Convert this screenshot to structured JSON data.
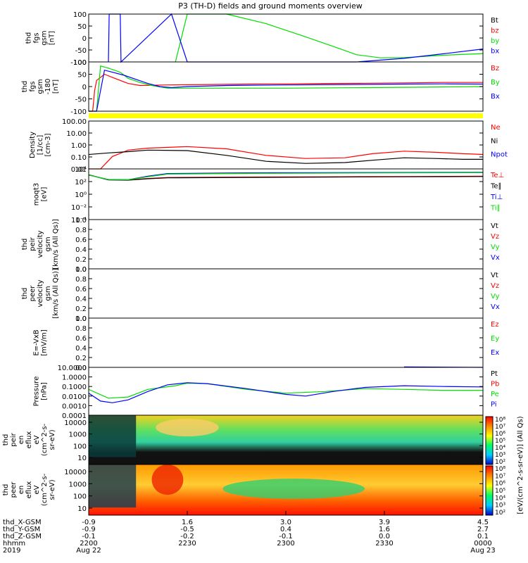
{
  "title": "P3 (TH-D) fields and ground moments overview",
  "colors": {
    "black": "#000000",
    "red": "#ff0000",
    "green": "#00dd00",
    "blue": "#0000ff",
    "yellow": "#ffff00"
  },
  "x_axis": {
    "ticks": [
      {
        "label": "2200",
        "x": "-0.9",
        "y": "-0.9",
        "z": "-0.1",
        "date": "Aug 22"
      },
      {
        "label": "2230",
        "x": "1.6",
        "y": "-0.5",
        "z": "-0.2",
        "date": ""
      },
      {
        "label": "2300",
        "x": "3.0",
        "y": "0.4",
        "z": "-0.1",
        "date": ""
      },
      {
        "label": "2330",
        "x": "3.9",
        "y": "1.6",
        "z": "0.0",
        "date": ""
      },
      {
        "label": "0000",
        "x": "4.5",
        "y": "2.7",
        "z": "0.1",
        "date": "Aug 23"
      }
    ],
    "row_labels": [
      "thd_X-GSM",
      "thd_Y-GSM",
      "thd_Z-GSM",
      "hhmm",
      "2019"
    ]
  },
  "chart_data": [
    {
      "id": "fgs_gsm",
      "type": "line",
      "ylabel": [
        "thd",
        "fgs",
        "gsm",
        "[nT]"
      ],
      "ylim": [
        -100,
        100
      ],
      "yticks": [
        "100",
        "50",
        "0",
        "-50",
        "-100"
      ],
      "series": [
        {
          "name": "Bt",
          "color": "#000000",
          "points": []
        },
        {
          "name": "bz",
          "color": "#ff0000",
          "points": []
        },
        {
          "name": "by",
          "color": "#00dd00",
          "points": [
            [
              0.22,
              -100
            ],
            [
              0.25,
              100
            ],
            [
              0.35,
              100
            ],
            [
              0.45,
              60
            ],
            [
              0.55,
              5
            ],
            [
              0.62,
              -35
            ],
            [
              0.68,
              -70
            ],
            [
              0.74,
              -83
            ],
            [
              0.8,
              -82
            ],
            [
              0.9,
              -72
            ],
            [
              1.0,
              -65
            ]
          ]
        },
        {
          "name": "bx",
          "color": "#0000ff",
          "points": [
            [
              0.05,
              -100
            ],
            [
              0.052,
              100
            ],
            [
              0.08,
              100
            ],
            [
              0.082,
              -100
            ],
            [
              0.21,
              100
            ],
            [
              0.25,
              -100
            ],
            [
              0.68,
              -100
            ],
            [
              0.8,
              -85
            ],
            [
              0.9,
              -66
            ],
            [
              1.0,
              -46
            ]
          ]
        }
      ]
    },
    {
      "id": "fgs_gsm_180",
      "type": "line",
      "ylabel": [
        "thd",
        "fgs",
        "gsm",
        "-180",
        "[nT]"
      ],
      "ylim": [
        -120,
        120
      ],
      "yticks": [
        "100",
        "50",
        "0",
        "-50",
        "-100"
      ],
      "series": [
        {
          "name": "Bz",
          "color": "#ff0000",
          "points": [
            [
              0.0,
              -120
            ],
            [
              0.01,
              -120
            ],
            [
              0.015,
              -20
            ],
            [
              0.02,
              30
            ],
            [
              0.04,
              60
            ],
            [
              0.06,
              45
            ],
            [
              0.08,
              30
            ],
            [
              0.1,
              15
            ],
            [
              0.13,
              5
            ],
            [
              0.2,
              8
            ],
            [
              0.3,
              10
            ],
            [
              0.4,
              12
            ],
            [
              0.5,
              13
            ],
            [
              0.6,
              15
            ],
            [
              0.7,
              16
            ],
            [
              0.8,
              18
            ],
            [
              0.9,
              20
            ],
            [
              1.0,
              20
            ]
          ]
        },
        {
          "name": "By",
          "color": "#00dd00",
          "points": [
            [
              0.0,
              -120
            ],
            [
              0.02,
              -120
            ],
            [
              0.03,
              100
            ],
            [
              0.05,
              90
            ],
            [
              0.08,
              70
            ],
            [
              0.1,
              40
            ],
            [
              0.13,
              20
            ],
            [
              0.16,
              5
            ],
            [
              0.2,
              -8
            ],
            [
              0.3,
              -8
            ],
            [
              0.5,
              -8
            ],
            [
              0.7,
              -5
            ],
            [
              0.85,
              -3
            ],
            [
              1.0,
              0
            ]
          ]
        },
        {
          "name": "Bx",
          "color": "#0000ff",
          "points": [
            [
              0.0,
              -120
            ],
            [
              0.02,
              -120
            ],
            [
              0.04,
              80
            ],
            [
              0.06,
              70
            ],
            [
              0.09,
              55
            ],
            [
              0.12,
              35
            ],
            [
              0.15,
              15
            ],
            [
              0.18,
              0
            ],
            [
              0.21,
              -5
            ],
            [
              0.25,
              0
            ],
            [
              0.35,
              5
            ],
            [
              0.5,
              8
            ],
            [
              0.65,
              10
            ],
            [
              0.8,
              12
            ],
            [
              0.9,
              13
            ],
            [
              1.0,
              12
            ]
          ]
        }
      ]
    },
    {
      "id": "density",
      "type": "line",
      "log": true,
      "ylabel": [
        "Density",
        "[1/cc]",
        "[cm-3]"
      ],
      "ylim": [
        0.1,
        100
      ],
      "yticks": [
        "100.00",
        "10.00",
        "1.00",
        "0.10",
        "0.01"
      ],
      "series": [
        {
          "name": "Ne",
          "color": "#ff0000",
          "points": [
            [
              0.0,
              0.08
            ],
            [
              0.03,
              0.1
            ],
            [
              0.06,
              0.6
            ],
            [
              0.1,
              1.5
            ],
            [
              0.15,
              2.0
            ],
            [
              0.25,
              2.5
            ],
            [
              0.35,
              1.8
            ],
            [
              0.45,
              0.7
            ],
            [
              0.55,
              0.45
            ],
            [
              0.65,
              0.5
            ],
            [
              0.72,
              0.9
            ],
            [
              0.8,
              1.3
            ],
            [
              0.88,
              1.1
            ],
            [
              0.95,
              0.9
            ],
            [
              1.0,
              0.8
            ]
          ]
        },
        {
          "name": "Ni",
          "color": "#000000",
          "points": [
            [
              0.0,
              0.8
            ],
            [
              0.05,
              1.0
            ],
            [
              0.1,
              1.2
            ],
            [
              0.15,
              1.5
            ],
            [
              0.25,
              1.4
            ],
            [
              0.35,
              0.7
            ],
            [
              0.45,
              0.3
            ],
            [
              0.55,
              0.22
            ],
            [
              0.65,
              0.25
            ],
            [
              0.72,
              0.35
            ],
            [
              0.8,
              0.5
            ],
            [
              0.88,
              0.45
            ],
            [
              0.95,
              0.4
            ],
            [
              1.0,
              0.4
            ]
          ]
        },
        {
          "name": "Npot",
          "color": "#0000ff",
          "points": []
        }
      ]
    },
    {
      "id": "moqt3",
      "type": "line",
      "log": true,
      "ylabel": [
        "moqt3",
        "[eV]"
      ],
      "ylim": [
        1e-05,
        10000
      ],
      "yticks": [
        "10⁴",
        "10²",
        "10⁰",
        "10⁻²",
        "10⁻⁴"
      ],
      "series": [
        {
          "name": "Te⊥",
          "color": "#ff0000",
          "points": [
            [
              0,
              900
            ],
            [
              0.05,
              120
            ],
            [
              0.1,
              110
            ],
            [
              0.15,
              200
            ],
            [
              0.2,
              300
            ],
            [
              0.4,
              350
            ],
            [
              0.6,
              400
            ],
            [
              0.8,
              450
            ],
            [
              1.0,
              500
            ]
          ]
        },
        {
          "name": "Te∥",
          "color": "#000000",
          "points": [
            [
              0,
              900
            ],
            [
              0.05,
              110
            ],
            [
              0.1,
              100
            ],
            [
              0.15,
              180
            ],
            [
              0.2,
              260
            ],
            [
              0.4,
              300
            ],
            [
              0.6,
              350
            ],
            [
              0.8,
              400
            ],
            [
              1.0,
              450
            ]
          ]
        },
        {
          "name": "Ti⊥",
          "color": "#0000ff",
          "points": [
            [
              0,
              800
            ],
            [
              0.05,
              130
            ],
            [
              0.1,
              120
            ],
            [
              0.15,
              500
            ],
            [
              0.2,
              1500
            ],
            [
              0.4,
              2000
            ],
            [
              0.6,
              2200
            ],
            [
              0.8,
              2300
            ],
            [
              1.0,
              2500
            ]
          ]
        },
        {
          "name": "Ti∥",
          "color": "#00dd00",
          "points": [
            [
              0,
              800
            ],
            [
              0.05,
              130
            ],
            [
              0.1,
              120
            ],
            [
              0.15,
              400
            ],
            [
              0.2,
              1200
            ],
            [
              0.4,
              1600
            ],
            [
              0.6,
              1800
            ],
            [
              0.8,
              2000
            ],
            [
              1.0,
              2100
            ]
          ]
        }
      ]
    },
    {
      "id": "peir_velocity",
      "type": "line",
      "ylabel": [
        "thd",
        "peir",
        "velocity",
        "gsm",
        "[km/s (All Qs)]"
      ],
      "ylim": [
        0,
        1
      ],
      "yticks": [
        "1.0",
        "0.8",
        "0.6",
        "0.4",
        "0.2",
        "0.0"
      ],
      "series": [
        {
          "name": "Vt",
          "color": "#000000",
          "points": []
        },
        {
          "name": "Vz",
          "color": "#ff0000",
          "points": []
        },
        {
          "name": "Vy",
          "color": "#00dd00",
          "points": []
        },
        {
          "name": "Vx",
          "color": "#0000ff",
          "points": []
        }
      ]
    },
    {
      "id": "peer_velocity",
      "type": "line",
      "ylabel": [
        "thd",
        "peer",
        "velocity",
        "gsm",
        "[km/s (All Qs)]"
      ],
      "ylim": [
        0,
        1
      ],
      "yticks": [
        "1.0",
        "0.8",
        "0.6",
        "0.4",
        "0.2",
        "0.0"
      ],
      "series": [
        {
          "name": "Vt",
          "color": "#000000",
          "points": []
        },
        {
          "name": "Vz",
          "color": "#ff0000",
          "points": []
        },
        {
          "name": "Vy",
          "color": "#00dd00",
          "points": []
        },
        {
          "name": "Vx",
          "color": "#0000ff",
          "points": []
        }
      ]
    },
    {
      "id": "e_vxb",
      "type": "line",
      "ylabel": [
        "E=-VxB",
        "[mV/m]"
      ],
      "ylim": [
        0,
        1
      ],
      "yticks": [
        "1.0",
        "0.8",
        "0.6",
        "0.4",
        "0.2",
        "0.0"
      ],
      "series": [
        {
          "name": "Ez",
          "color": "#ff0000",
          "points": []
        },
        {
          "name": "Ey",
          "color": "#00dd00",
          "points": []
        },
        {
          "name": "Ex",
          "color": "#0000ff",
          "points": [
            [
              0.8,
              0.01
            ],
            [
              1.0,
              0.0
            ]
          ]
        }
      ]
    },
    {
      "id": "pressure",
      "type": "line",
      "log": true,
      "ylabel": [
        "Pressure",
        "[nPa]"
      ],
      "ylim": [
        0.0001,
        10
      ],
      "yticks": [
        "10.0000",
        "1.0000",
        "0.1000",
        "0.0100",
        "0.0010",
        "0.0001"
      ],
      "series": [
        {
          "name": "Pt",
          "color": "#000000",
          "points": []
        },
        {
          "name": "Pb",
          "color": "#ff0000",
          "points": []
        },
        {
          "name": "Pe",
          "color": "#00dd00",
          "points": [
            [
              0.0,
              0.05
            ],
            [
              0.05,
              0.006
            ],
            [
              0.1,
              0.008
            ],
            [
              0.15,
              0.05
            ],
            [
              0.22,
              0.12
            ],
            [
              0.25,
              0.22
            ],
            [
              0.3,
              0.2
            ],
            [
              0.4,
              0.05
            ],
            [
              0.5,
              0.02
            ],
            [
              0.6,
              0.03
            ],
            [
              0.7,
              0.06
            ],
            [
              0.8,
              0.05
            ],
            [
              0.9,
              0.04
            ],
            [
              1.0,
              0.04
            ]
          ]
        },
        {
          "name": "Pi",
          "color": "#0000ff",
          "points": [
            [
              0.0,
              0.02
            ],
            [
              0.03,
              0.003
            ],
            [
              0.06,
              0.002
            ],
            [
              0.1,
              0.004
            ],
            [
              0.15,
              0.03
            ],
            [
              0.2,
              0.15
            ],
            [
              0.25,
              0.25
            ],
            [
              0.3,
              0.2
            ],
            [
              0.4,
              0.06
            ],
            [
              0.5,
              0.015
            ],
            [
              0.55,
              0.01
            ],
            [
              0.62,
              0.03
            ],
            [
              0.7,
              0.08
            ],
            [
              0.8,
              0.12
            ],
            [
              0.9,
              0.1
            ],
            [
              1.0,
              0.09
            ]
          ]
        }
      ]
    },
    {
      "id": "peir_en_eflux",
      "type": "heatmap",
      "ylabel": [
        "thd",
        "peir",
        "en",
        "eflux",
        "eV",
        "(cm^2-s-",
        "sr-eV)"
      ],
      "yticks": [
        "10000",
        "1000",
        "100",
        "10"
      ]
    },
    {
      "id": "peer_en_eflux",
      "type": "heatmap",
      "ylabel": [
        "thd",
        "peer",
        "en",
        "eflux",
        "eV",
        "(cm^2-s-",
        "sr-eV)"
      ],
      "yticks": [
        "10000",
        "1000",
        "100",
        "10"
      ]
    }
  ],
  "colorbar": {
    "top_ticks": [
      "10⁸",
      "10⁷",
      "10⁶",
      "10⁵",
      "10⁴",
      "10³",
      "10²"
    ],
    "bottom_ticks": [
      "10⁸",
      "10⁷",
      "10⁶",
      "10⁵",
      "10⁴",
      "10³",
      "10²"
    ],
    "label": "[eV/(cm^2-s-sr-eV)] (All Qs)"
  }
}
